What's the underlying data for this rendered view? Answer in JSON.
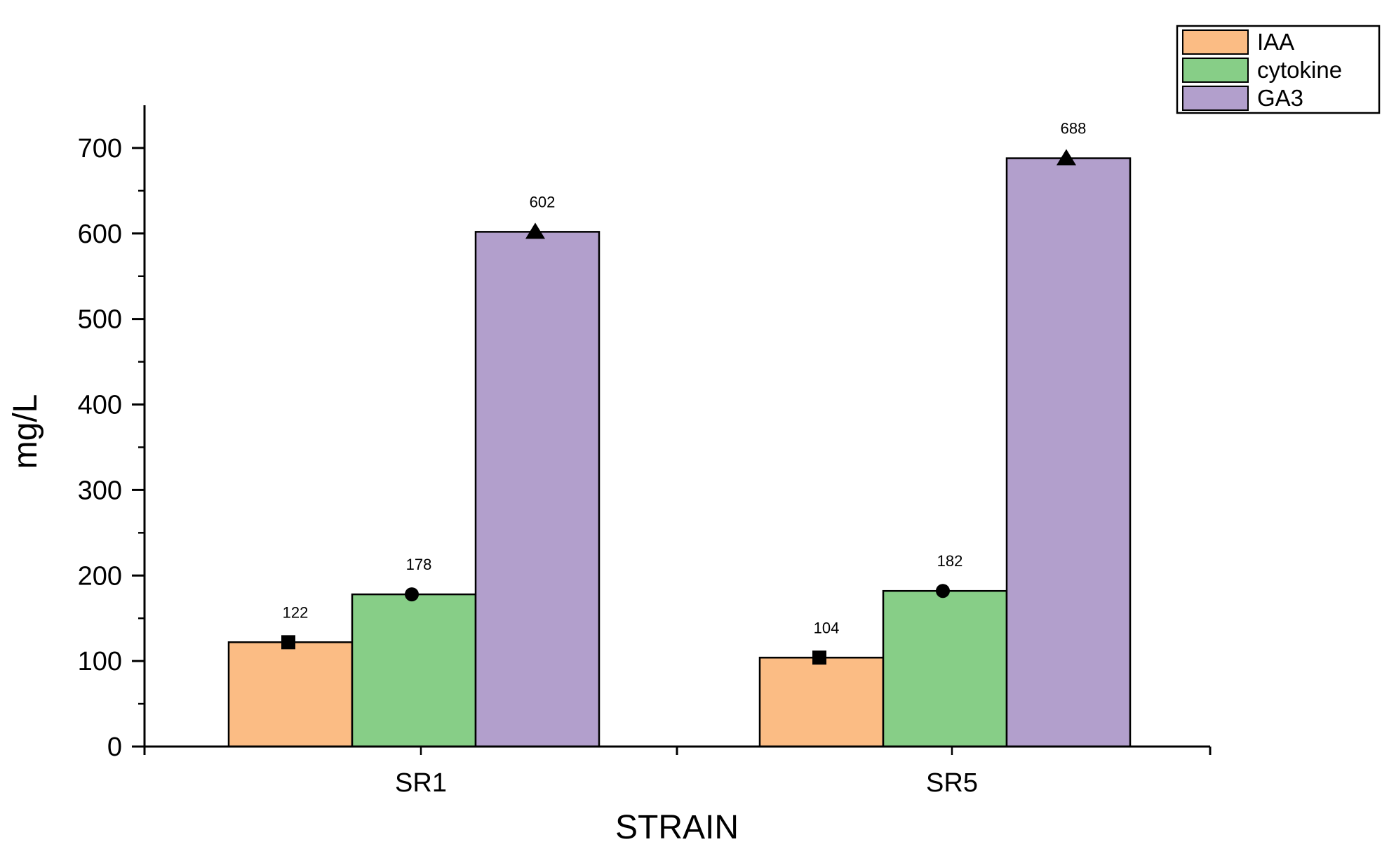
{
  "chart_data": {
    "type": "bar",
    "categories": [
      "SR1",
      "SR5"
    ],
    "series": [
      {
        "name": "IAA",
        "values": [
          122,
          104
        ],
        "color": "#FBBC84",
        "marker": "square"
      },
      {
        "name": "cytokine",
        "values": [
          178,
          182
        ],
        "color": "#87CE87",
        "marker": "circle"
      },
      {
        "name": "GA3",
        "values": [
          602,
          688
        ],
        "color": "#B29FCC",
        "marker": "triangle"
      }
    ],
    "data_labels": [
      [
        "122",
        "104"
      ],
      [
        "178",
        "182"
      ],
      [
        "602",
        "688"
      ]
    ],
    "xlabel": "STRAIN",
    "ylabel": "mg/L",
    "ylim": [
      0,
      750
    ],
    "yticks": [
      0,
      100,
      200,
      300,
      400,
      500,
      600,
      700
    ],
    "ytick_labels": [
      "0",
      "100",
      "200",
      "300",
      "400",
      "500",
      "600",
      "700"
    ],
    "grid": false,
    "legend_position": "top-right"
  }
}
